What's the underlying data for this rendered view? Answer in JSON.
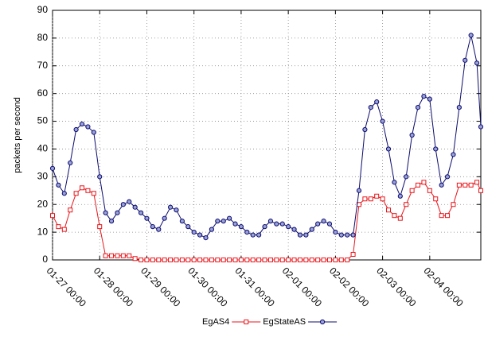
{
  "chart_data": {
    "type": "line",
    "ylabel": "packets per second",
    "ylim": [
      0,
      90
    ],
    "yticks": [
      0,
      10,
      20,
      30,
      40,
      50,
      60,
      70,
      80,
      90
    ],
    "xlim": [
      "01-27 00:00",
      "02-05 02:00"
    ],
    "xticks": [
      "01-27 00:00",
      "01-28 00:00",
      "01-29 00:00",
      "01-30 00:00",
      "01-31 00:00",
      "02-01 00:00",
      "02-02 00:00",
      "02-03 00:00",
      "02-04 00:00"
    ],
    "grid": true,
    "legend": "bottom",
    "x": [
      "01-27 00:00",
      "01-27 03:00",
      "01-27 06:00",
      "01-27 09:00",
      "01-27 12:00",
      "01-27 15:00",
      "01-27 18:00",
      "01-27 21:00",
      "01-28 00:00",
      "01-28 03:00",
      "01-28 06:00",
      "01-28 09:00",
      "01-28 12:00",
      "01-28 15:00",
      "01-28 18:00",
      "01-28 21:00",
      "01-29 00:00",
      "01-29 03:00",
      "01-29 06:00",
      "01-29 09:00",
      "01-29 12:00",
      "01-29 15:00",
      "01-29 18:00",
      "01-29 21:00",
      "01-30 00:00",
      "01-30 03:00",
      "01-30 06:00",
      "01-30 09:00",
      "01-30 12:00",
      "01-30 15:00",
      "01-30 18:00",
      "01-30 21:00",
      "01-31 00:00",
      "01-31 03:00",
      "01-31 06:00",
      "01-31 09:00",
      "01-31 12:00",
      "01-31 15:00",
      "01-31 18:00",
      "01-31 21:00",
      "02-01 00:00",
      "02-01 03:00",
      "02-01 06:00",
      "02-01 09:00",
      "02-01 12:00",
      "02-01 15:00",
      "02-01 18:00",
      "02-01 21:00",
      "02-02 00:00",
      "02-02 03:00",
      "02-02 06:00",
      "02-02 09:00",
      "02-02 12:00",
      "02-02 15:00",
      "02-02 18:00",
      "02-02 21:00",
      "02-03 00:00",
      "02-03 03:00",
      "02-03 06:00",
      "02-03 09:00",
      "02-03 12:00",
      "02-03 15:00",
      "02-03 18:00",
      "02-03 21:00",
      "02-04 00:00",
      "02-04 03:00",
      "02-04 06:00",
      "02-04 09:00",
      "02-04 12:00",
      "02-04 15:00",
      "02-04 18:00",
      "02-04 21:00",
      "02-05 00:00",
      "02-05 02:00"
    ],
    "series": [
      {
        "name": "EgAS4",
        "color": "#e8161b",
        "marker": "square",
        "values": [
          16,
          12,
          11,
          18,
          24,
          26,
          25,
          24,
          12,
          1.5,
          1.5,
          1.5,
          1.5,
          1.5,
          0.5,
          0,
          0,
          0,
          0,
          0,
          0,
          0,
          0,
          0,
          0,
          0,
          0,
          0,
          0,
          0,
          0,
          0,
          0,
          0,
          0,
          0,
          0,
          0,
          0,
          0,
          0,
          0,
          0,
          0,
          0,
          0,
          0,
          0,
          0,
          0,
          0,
          2,
          20,
          22,
          22,
          23,
          22,
          18,
          16,
          15,
          20,
          25,
          27,
          28,
          25,
          22,
          16,
          16,
          20,
          27,
          27,
          27,
          28,
          25
        ]
      },
      {
        "name": "EgStateAS",
        "color": "#0c0c6e",
        "marker": "circle",
        "values": [
          33,
          27,
          24,
          35,
          47,
          49,
          48,
          46,
          30,
          17,
          14,
          17,
          20,
          21,
          19,
          17,
          15,
          12,
          11,
          15,
          19,
          18,
          14,
          12,
          10,
          9,
          8,
          11,
          14,
          14,
          15,
          13,
          12,
          10,
          9,
          9,
          12,
          14,
          13,
          13,
          12,
          11,
          9,
          9,
          11,
          13,
          14,
          13,
          10,
          9,
          9,
          9,
          25,
          47,
          55,
          57,
          50,
          40,
          28,
          23,
          30,
          45,
          55,
          59,
          58,
          40,
          27,
          30,
          38,
          55,
          72,
          81,
          71,
          48
        ]
      }
    ]
  }
}
